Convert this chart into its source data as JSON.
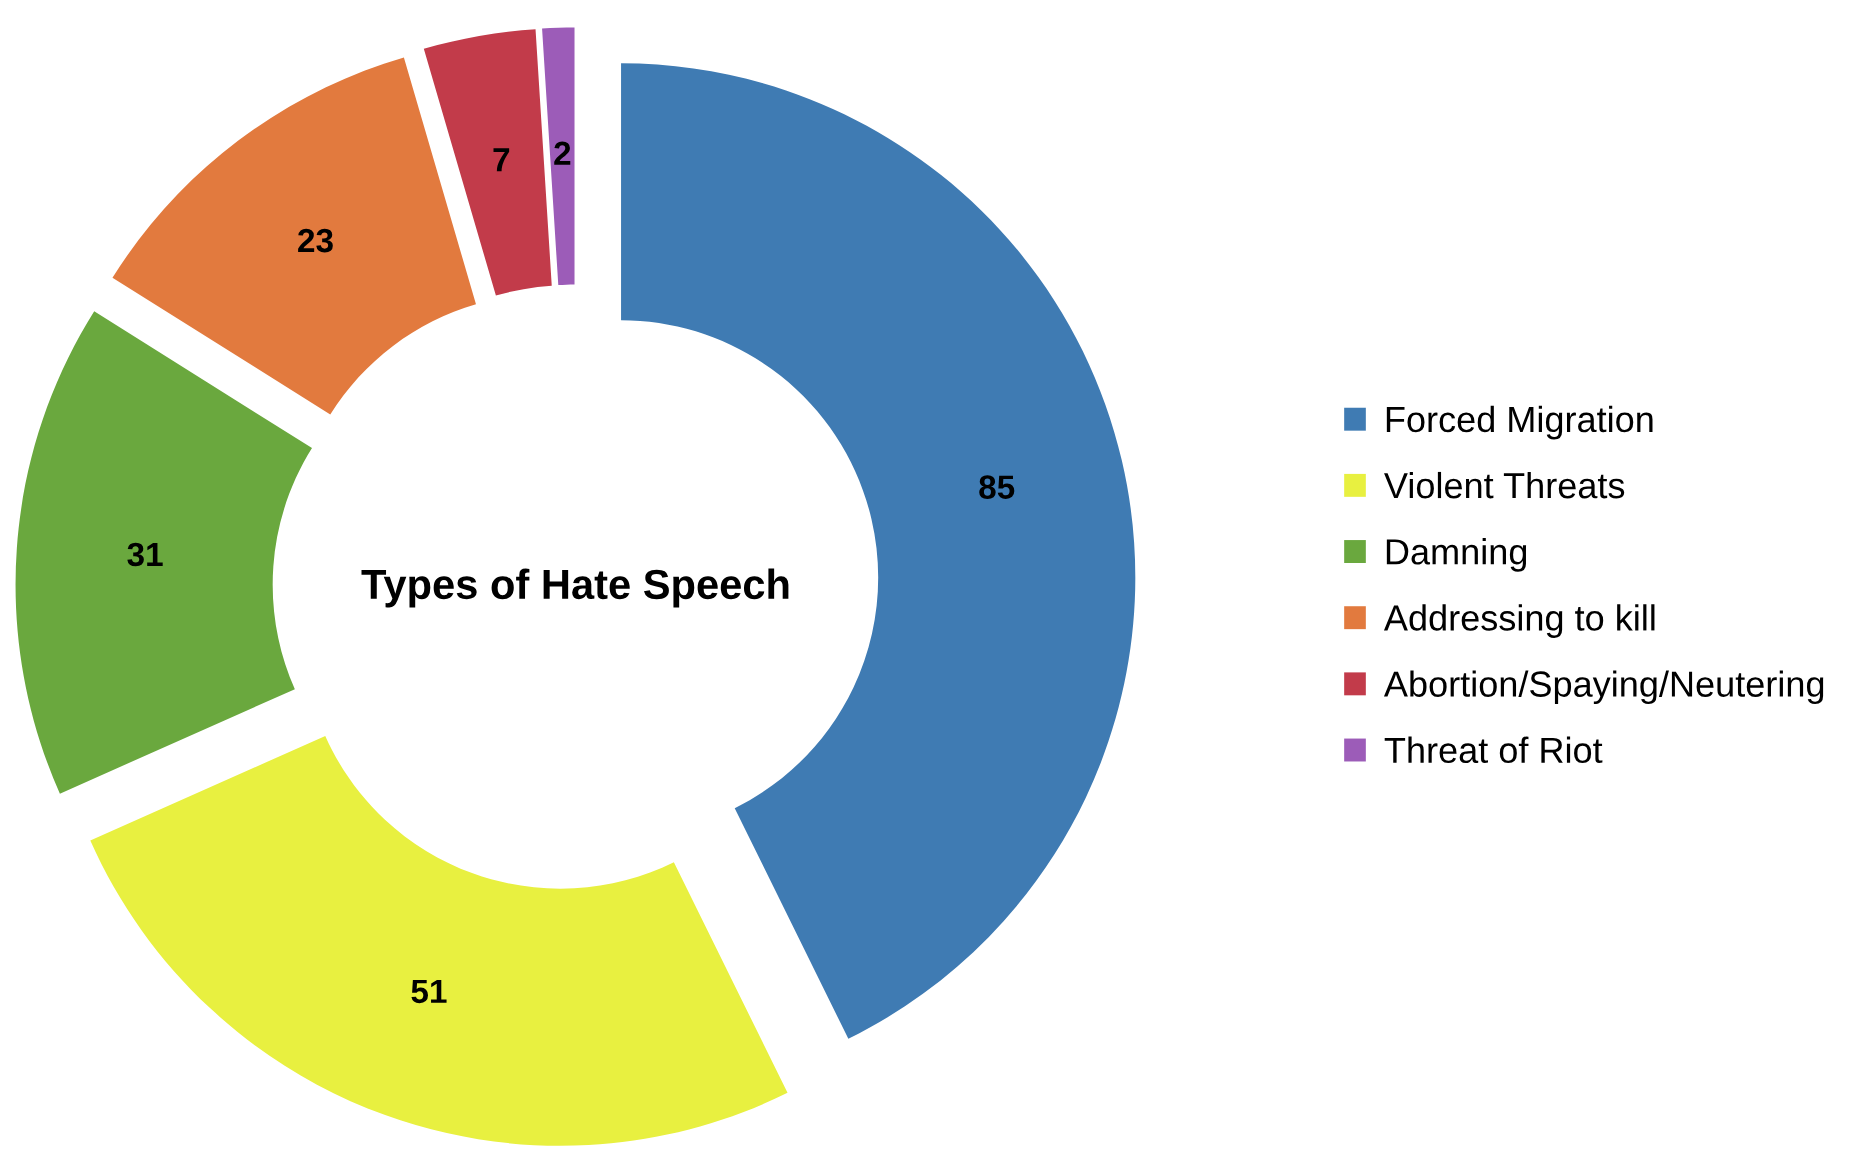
{
  "chart_data": {
    "type": "donut",
    "title": "Types of Hate Speech",
    "categories": [
      "Forced Migration",
      "Violent Threats",
      "Damning",
      "Addressing to kill",
      "Abortion/Spaying/Neutering",
      "Threat of Riot"
    ],
    "values": [
      85,
      51,
      31,
      23,
      7,
      2
    ],
    "colors": [
      "#3f7bb3",
      "#e8f040",
      "#6aa83e",
      "#e27a3e",
      "#c23b4a",
      "#9c5cb8"
    ],
    "data_labels": true,
    "legend": "right"
  }
}
